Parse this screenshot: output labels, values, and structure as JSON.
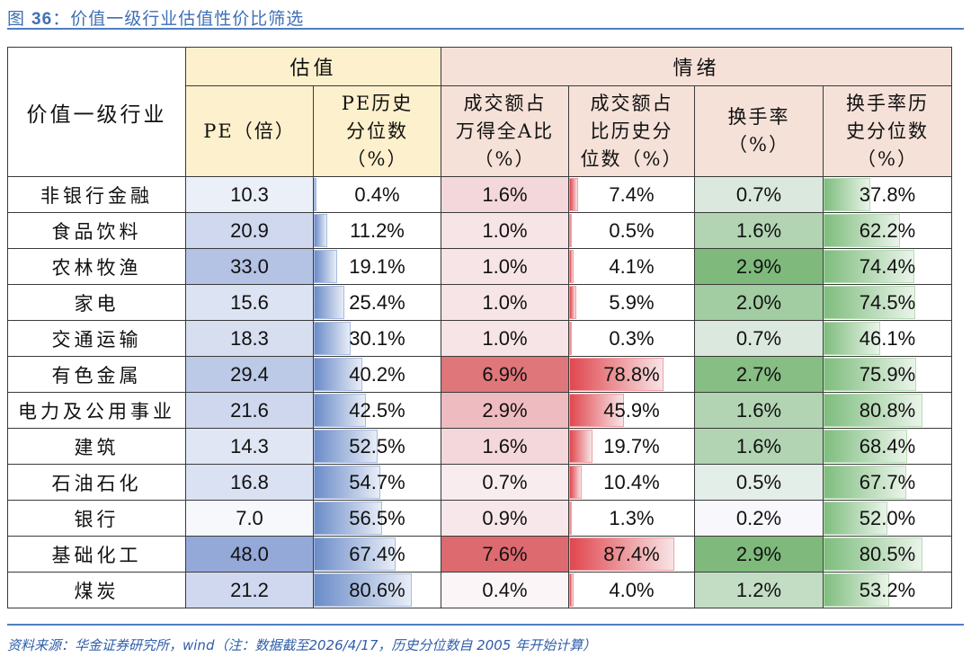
{
  "title": {
    "prefix": "图 ",
    "number": "36",
    "text": "：价值一级行业估值性价比筛选"
  },
  "header": {
    "industry": "价值一级行业",
    "groups": [
      {
        "label": "估值",
        "colspan": 2
      },
      {
        "label": "情绪",
        "colspan": 4
      }
    ],
    "columns": [
      {
        "key": "pe",
        "lines": [
          "PE（倍）"
        ]
      },
      {
        "key": "pe_pct",
        "lines": [
          "PE历史",
          "分位数",
          "（%）"
        ]
      },
      {
        "key": "share",
        "lines": [
          "成交额占",
          "万得全A比",
          "（%）"
        ]
      },
      {
        "key": "share_pct",
        "lines": [
          "成交额占",
          "比历史分",
          "位数（%）"
        ]
      },
      {
        "key": "turnover",
        "lines": [
          "换手率",
          "（%）"
        ]
      },
      {
        "key": "turnover_pct",
        "lines": [
          "换手率历",
          "史分位数",
          "（%）"
        ]
      }
    ]
  },
  "colors": {
    "valuation_header_bg": "#fdf0cc",
    "sentiment_header_bg": "#f5e1d8",
    "pe_scale": [
      "#f6f8fc",
      "#95a9d9"
    ],
    "share_scale": [
      "#fbf5f8",
      "#dc6a6f"
    ],
    "turnover_scale": [
      "#f7f7fc",
      "#7fba7c"
    ],
    "pe_pct_bar": "#6b8cc8",
    "share_pct_bar": "#e0474e",
    "turnover_pct_bar": "#7fbd7e",
    "title": "#3f6fb5",
    "source": "#2f5ea8"
  },
  "rows": [
    {
      "industry": "非银行金融",
      "pe": "10.3",
      "pe_pct": "0.4%",
      "share": "1.6%",
      "share_pct": "7.4%",
      "turnover": "0.7%",
      "turnover_pct": "37.8%"
    },
    {
      "industry": "食品饮料",
      "pe": "20.9",
      "pe_pct": "11.2%",
      "share": "1.0%",
      "share_pct": "0.5%",
      "turnover": "1.6%",
      "turnover_pct": "62.2%"
    },
    {
      "industry": "农林牧渔",
      "pe": "33.0",
      "pe_pct": "19.1%",
      "share": "1.0%",
      "share_pct": "4.1%",
      "turnover": "2.9%",
      "turnover_pct": "74.4%"
    },
    {
      "industry": "家电",
      "pe": "15.6",
      "pe_pct": "25.4%",
      "share": "1.0%",
      "share_pct": "5.9%",
      "turnover": "2.0%",
      "turnover_pct": "74.5%"
    },
    {
      "industry": "交通运输",
      "pe": "18.3",
      "pe_pct": "30.1%",
      "share": "1.0%",
      "share_pct": "0.3%",
      "turnover": "0.7%",
      "turnover_pct": "46.1%"
    },
    {
      "industry": "有色金属",
      "pe": "29.4",
      "pe_pct": "40.2%",
      "share": "6.9%",
      "share_pct": "78.8%",
      "turnover": "2.7%",
      "turnover_pct": "75.9%"
    },
    {
      "industry": "电力及公用事业",
      "pe": "21.6",
      "pe_pct": "42.5%",
      "share": "2.9%",
      "share_pct": "45.9%",
      "turnover": "1.6%",
      "turnover_pct": "80.8%"
    },
    {
      "industry": "建筑",
      "pe": "14.3",
      "pe_pct": "52.5%",
      "share": "1.6%",
      "share_pct": "19.7%",
      "turnover": "1.6%",
      "turnover_pct": "68.4%"
    },
    {
      "industry": "石油石化",
      "pe": "16.8",
      "pe_pct": "54.7%",
      "share": "0.7%",
      "share_pct": "10.4%",
      "turnover": "0.5%",
      "turnover_pct": "67.7%"
    },
    {
      "industry": "银行",
      "pe": "7.0",
      "pe_pct": "56.5%",
      "share": "0.9%",
      "share_pct": "1.3%",
      "turnover": "0.2%",
      "turnover_pct": "52.0%"
    },
    {
      "industry": "基础化工",
      "pe": "48.0",
      "pe_pct": "67.4%",
      "share": "7.6%",
      "share_pct": "87.4%",
      "turnover": "2.9%",
      "turnover_pct": "80.5%"
    },
    {
      "industry": "煤炭",
      "pe": "21.2",
      "pe_pct": "80.6%",
      "share": "0.4%",
      "share_pct": "4.0%",
      "turnover": "1.2%",
      "turnover_pct": "53.2%"
    }
  ],
  "source": "资料来源：华金证券研究所，wind（注：数据截至2026/4/17，历史分位数自 2005 年开始计算）"
}
